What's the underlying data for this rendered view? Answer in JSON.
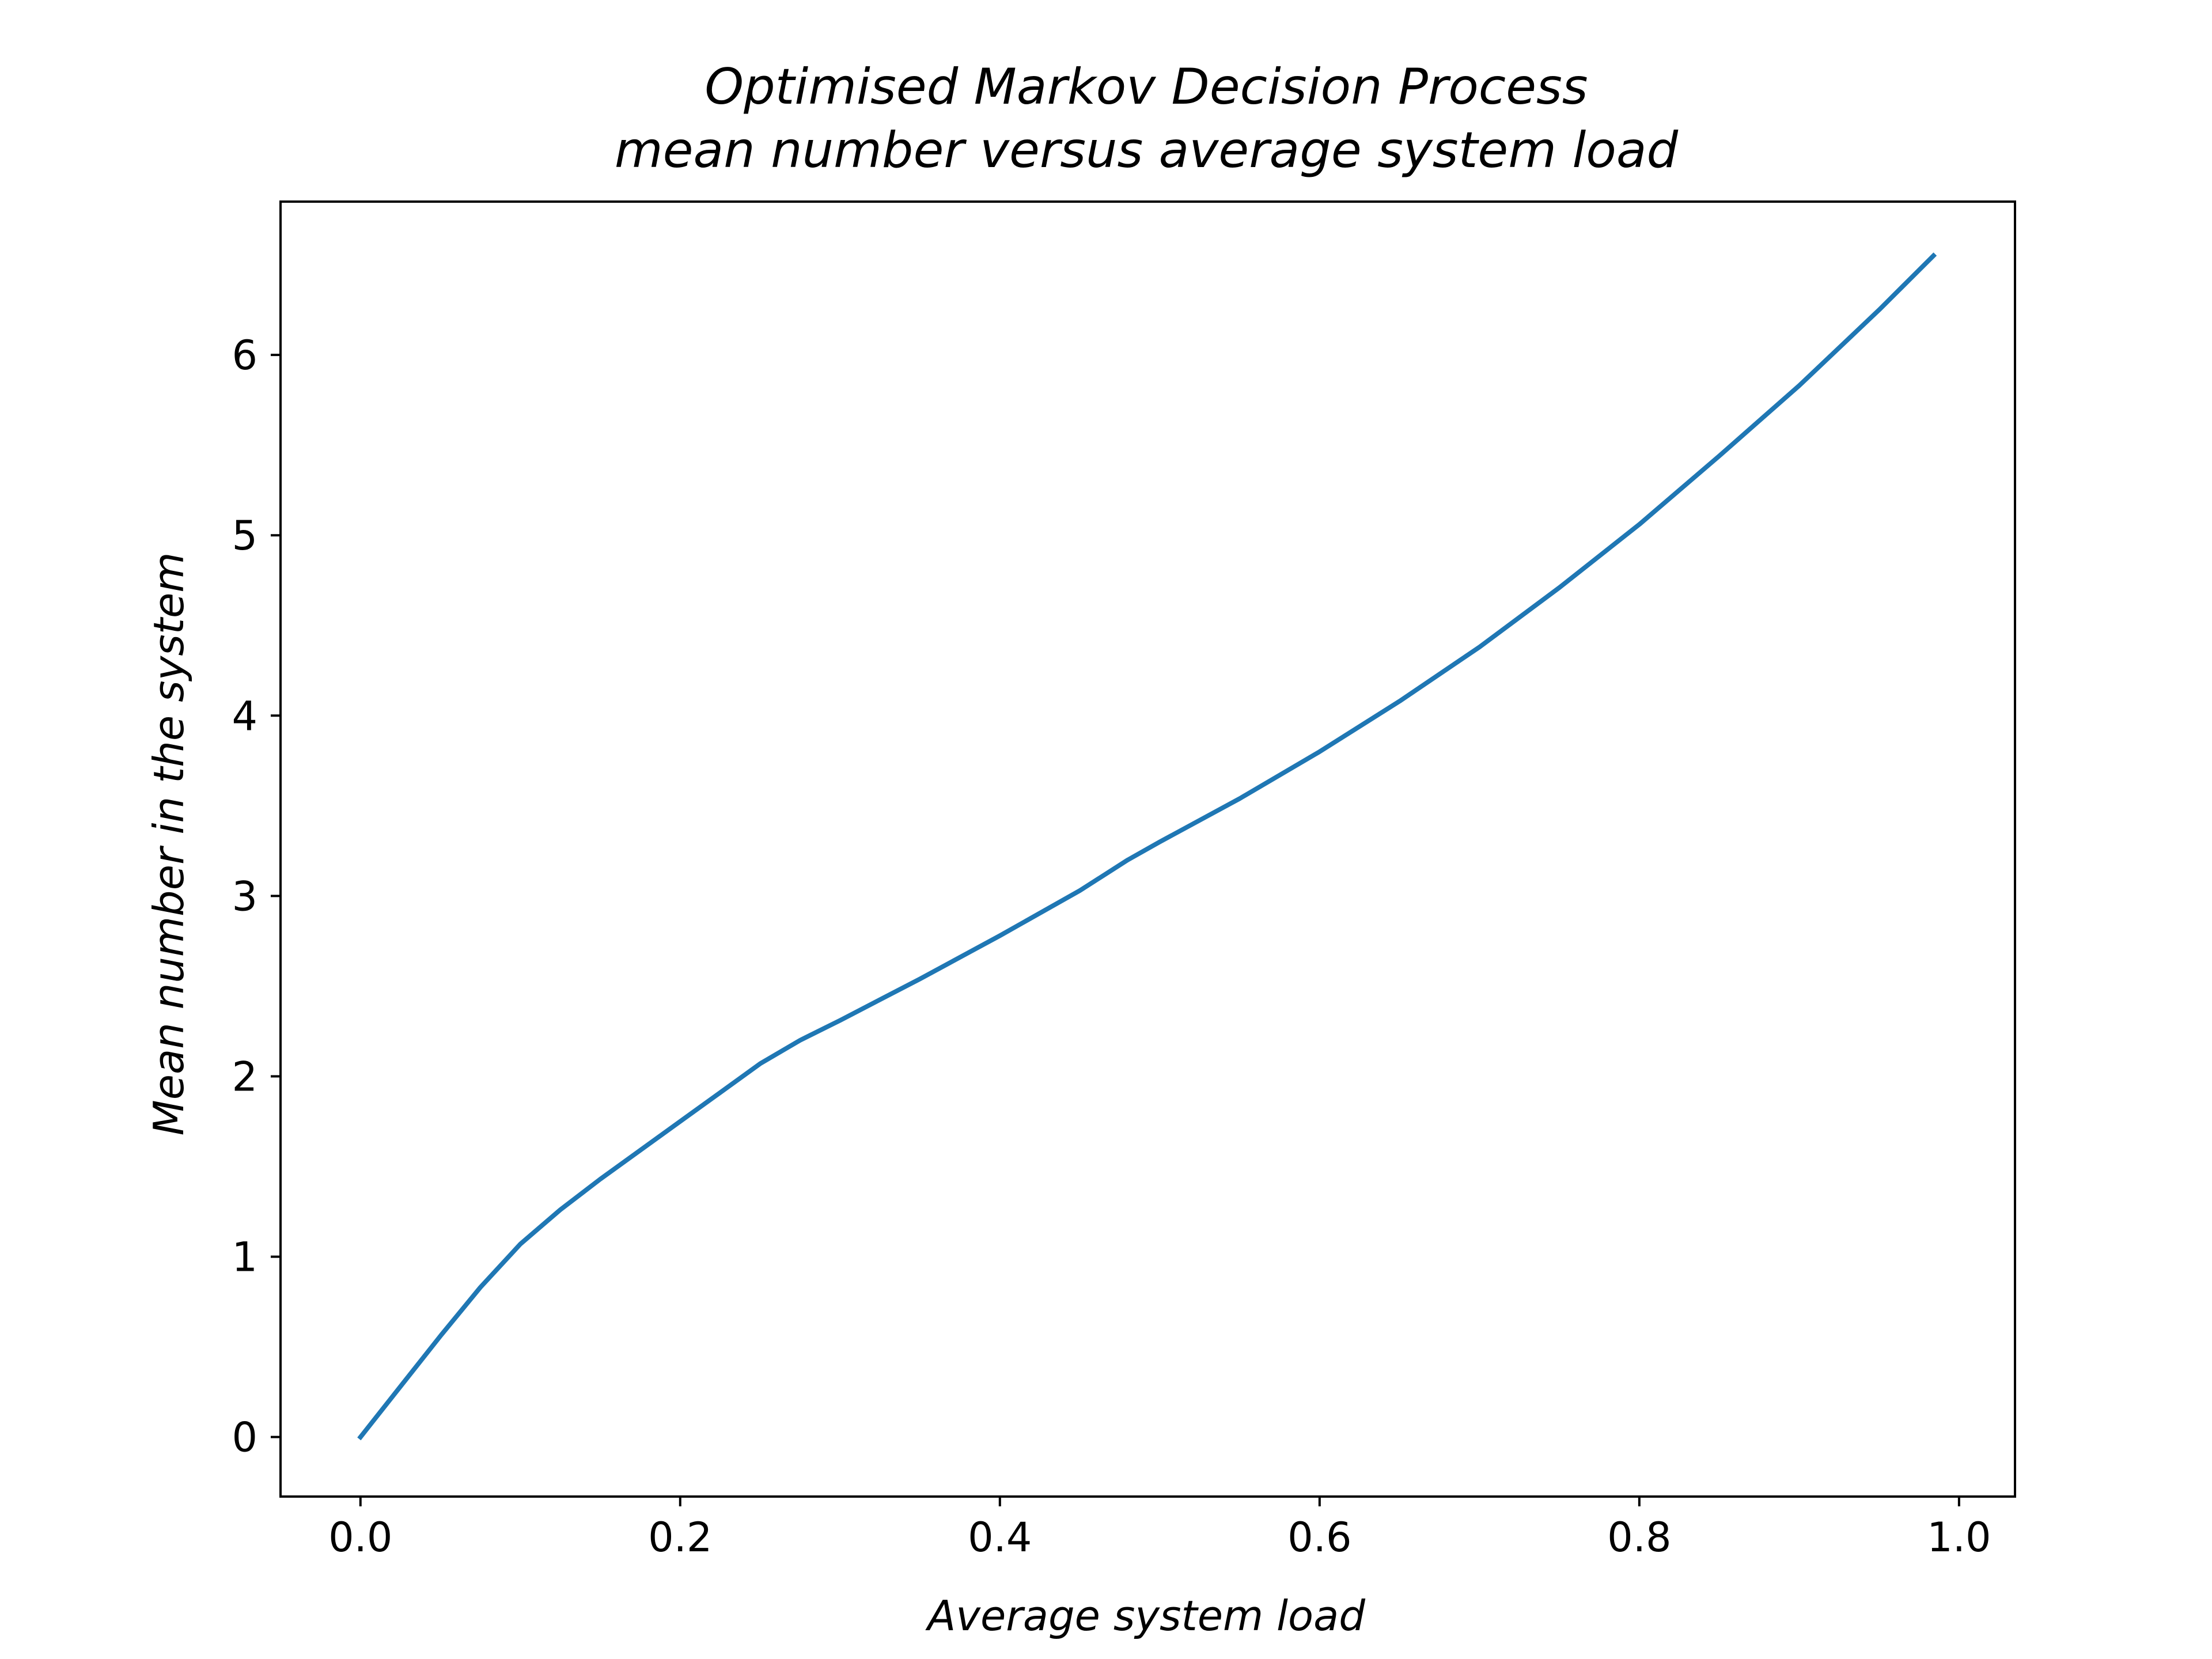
{
  "chart_data": {
    "type": "line",
    "title": "Optimised Markov Decision Process",
    "subtitle": "mean number versus average system load",
    "xlabel": "Average system load",
    "ylabel": "Mean number in the system",
    "xlim": [
      -0.05,
      1.035
    ],
    "ylim": [
      -0.33,
      6.85
    ],
    "xticks": [
      0.0,
      0.2,
      0.4,
      0.6,
      0.8,
      1.0
    ],
    "xtick_labels": [
      "0.0",
      "0.2",
      "0.4",
      "0.6",
      "0.8",
      "1.0"
    ],
    "yticks": [
      0,
      1,
      2,
      3,
      4,
      5,
      6
    ],
    "ytick_labels": [
      "0",
      "1",
      "2",
      "3",
      "4",
      "5",
      "6"
    ],
    "grid": false,
    "legend": "none",
    "series": [
      {
        "color": "#1f77b4",
        "x": [
          0.0,
          0.025,
          0.05,
          0.075,
          0.1,
          0.125,
          0.15,
          0.175,
          0.2,
          0.225,
          0.25,
          0.275,
          0.3,
          0.35,
          0.4,
          0.45,
          0.48,
          0.5,
          0.55,
          0.6,
          0.65,
          0.7,
          0.75,
          0.8,
          0.85,
          0.9,
          0.95,
          0.984
        ],
        "y": [
          0.0,
          0.28,
          0.56,
          0.83,
          1.07,
          1.26,
          1.43,
          1.59,
          1.75,
          1.91,
          2.07,
          2.2,
          2.31,
          2.54,
          2.78,
          3.03,
          3.2,
          3.3,
          3.54,
          3.8,
          4.08,
          4.38,
          4.71,
          5.06,
          5.44,
          5.83,
          6.25,
          6.55
        ]
      }
    ]
  }
}
